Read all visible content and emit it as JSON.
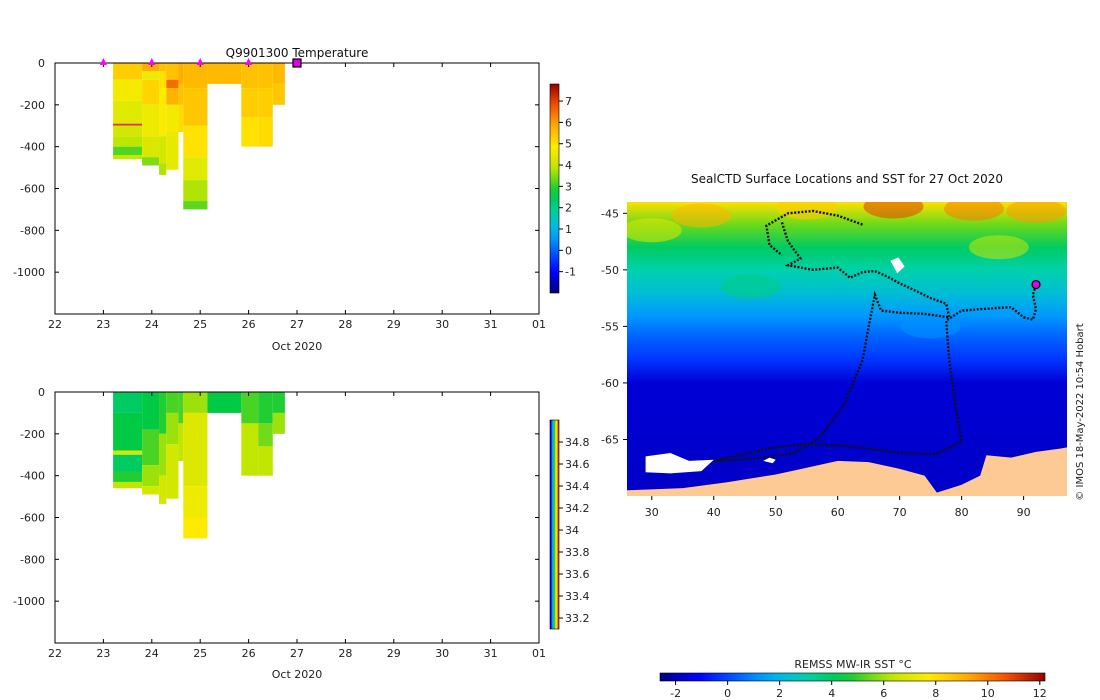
{
  "credit": "© IMOS 18-May-2022 10:54 Hobart",
  "colors": {
    "land": "#fdc994",
    "ice": "#ffffff",
    "track": "#111111",
    "marker": "#ff00ff",
    "current_marker": "#e000e0"
  },
  "chart_data": [
    {
      "id": "temperature",
      "type": "heatmap",
      "title": "Q9901300  Temperature",
      "xlabel": "Oct 2020",
      "ylabel": "",
      "xlim": [
        22,
        32
      ],
      "ylim": [
        -1200,
        0
      ],
      "xticks": [
        "22",
        "23",
        "24",
        "25",
        "26",
        "27",
        "28",
        "29",
        "30",
        "31",
        "01"
      ],
      "yticks": [
        0,
        -200,
        -400,
        -600,
        -800,
        -1000
      ],
      "ytick_labels": [
        "0",
        "-200",
        "-400",
        "-600",
        "-800",
        "-1000"
      ],
      "colorbar": {
        "min": -2,
        "max": 7.8,
        "ticks": [
          -1,
          0,
          1,
          2,
          3,
          4,
          5,
          6,
          7
        ],
        "tick_labels": [
          "-1",
          "0",
          "1",
          "2",
          "3",
          "4",
          "5",
          "6",
          "7"
        ]
      },
      "profile_markers_x": [
        23,
        24,
        25,
        26
      ],
      "current_x": 27,
      "columns": [
        {
          "x0": 23.2,
          "x1": 23.8,
          "max_depth": 460,
          "layers": [
            [
              0,
              80,
              5.3
            ],
            [
              80,
              180,
              4.7
            ],
            [
              180,
              290,
              4.4
            ],
            [
              290,
              300,
              7.0
            ],
            [
              300,
              350,
              4.2
            ],
            [
              350,
              400,
              3.9
            ],
            [
              400,
              440,
              3.2
            ],
            [
              440,
              460,
              4.0
            ]
          ]
        },
        {
          "x0": 23.8,
          "x1": 24.15,
          "max_depth": 490,
          "layers": [
            [
              0,
              40,
              5.8
            ],
            [
              40,
              80,
              4.6
            ],
            [
              80,
              200,
              5.2
            ],
            [
              200,
              350,
              4.6
            ],
            [
              350,
              450,
              4.3
            ],
            [
              450,
              490,
              3.5
            ]
          ]
        },
        {
          "x0": 24.15,
          "x1": 24.3,
          "max_depth": 535,
          "layers": [
            [
              0,
              40,
              5.5
            ],
            [
              40,
              120,
              5.0
            ],
            [
              120,
              350,
              4.8
            ],
            [
              350,
              480,
              4.2
            ],
            [
              480,
              535,
              3.8
            ]
          ]
        },
        {
          "x0": 24.3,
          "x1": 24.55,
          "max_depth": 510,
          "layers": [
            [
              0,
              80,
              5.5
            ],
            [
              80,
              120,
              6.5
            ],
            [
              120,
              200,
              5.7
            ],
            [
              200,
              330,
              4.7
            ],
            [
              330,
              510,
              4.5
            ]
          ]
        },
        {
          "x0": 24.55,
          "x1": 24.65,
          "max_depth": 330,
          "layers": [
            [
              0,
              100,
              5.8
            ],
            [
              100,
              200,
              5.5
            ],
            [
              200,
              330,
              5.1
            ]
          ]
        },
        {
          "x0": 24.65,
          "x1": 25.15,
          "max_depth": 700,
          "layers": [
            [
              0,
              120,
              5.6
            ],
            [
              120,
              300,
              5.4
            ],
            [
              300,
              450,
              5.0
            ],
            [
              450,
              560,
              4.4
            ],
            [
              560,
              660,
              3.8
            ],
            [
              660,
              700,
              3.3
            ]
          ]
        },
        {
          "x0": 25.15,
          "x1": 25.85,
          "max_depth": 100,
          "layers": [
            [
              0,
              100,
              5.6
            ]
          ]
        },
        {
          "x0": 25.85,
          "x1": 26.2,
          "max_depth": 400,
          "layers": [
            [
              0,
              120,
              5.5
            ],
            [
              120,
              260,
              5.3
            ],
            [
              260,
              400,
              5.0
            ]
          ]
        },
        {
          "x0": 26.2,
          "x1": 26.5,
          "max_depth": 400,
          "layers": [
            [
              0,
              120,
              5.5
            ],
            [
              120,
              260,
              5.3
            ],
            [
              260,
              400,
              5.1
            ]
          ]
        },
        {
          "x0": 26.5,
          "x1": 26.75,
          "max_depth": 200,
          "layers": [
            [
              0,
              100,
              5.6
            ],
            [
              100,
              200,
              5.4
            ]
          ]
        }
      ]
    },
    {
      "id": "salinity",
      "type": "heatmap",
      "title": "",
      "xlabel": "Oct 2020",
      "ylabel": "",
      "xlim": [
        22,
        32
      ],
      "ylim": [
        -1200,
        0
      ],
      "xticks": [
        "22",
        "23",
        "24",
        "25",
        "26",
        "27",
        "28",
        "29",
        "30",
        "31",
        "01"
      ],
      "yticks": [
        0,
        -200,
        -400,
        -600,
        -800,
        -1000
      ],
      "ytick_labels": [
        "0",
        "-200",
        "-400",
        "-600",
        "-800",
        "-1000"
      ],
      "colorbar": {
        "min": 33.1,
        "max": 35.0,
        "ticks": [
          33.2,
          33.4,
          33.6,
          33.8,
          34,
          34.2,
          34.4,
          34.6,
          34.8
        ],
        "tick_labels": [
          "33.2",
          "33.4",
          "33.6",
          "33.8",
          "34",
          "34.2",
          "34.4",
          "34.6",
          "34.8"
        ]
      },
      "columns": [
        {
          "x0": 23.2,
          "x1": 23.8,
          "max_depth": 460,
          "layers": [
            [
              0,
              100,
              33.95
            ],
            [
              100,
              280,
              34.0
            ],
            [
              280,
              300,
              34.3
            ],
            [
              300,
              380,
              33.95
            ],
            [
              380,
              430,
              34.05
            ],
            [
              430,
              460,
              34.25
            ]
          ]
        },
        {
          "x0": 23.8,
          "x1": 24.15,
          "max_depth": 490,
          "layers": [
            [
              0,
              180,
              34.0
            ],
            [
              180,
              350,
              34.1
            ],
            [
              350,
              450,
              34.2
            ],
            [
              450,
              490,
              34.3
            ]
          ]
        },
        {
          "x0": 24.15,
          "x1": 24.3,
          "max_depth": 535,
          "layers": [
            [
              0,
              200,
              34.05
            ],
            [
              200,
              400,
              34.2
            ],
            [
              400,
              535,
              34.3
            ]
          ]
        },
        {
          "x0": 24.3,
          "x1": 24.55,
          "max_depth": 510,
          "layers": [
            [
              0,
              100,
              34.1
            ],
            [
              100,
              250,
              34.2
            ],
            [
              250,
              510,
              34.3
            ]
          ]
        },
        {
          "x0": 24.55,
          "x1": 24.65,
          "max_depth": 330,
          "layers": [
            [
              0,
              150,
              34.1
            ],
            [
              150,
              330,
              34.25
            ]
          ]
        },
        {
          "x0": 24.65,
          "x1": 25.15,
          "max_depth": 700,
          "layers": [
            [
              0,
              100,
              34.2
            ],
            [
              100,
              450,
              34.33
            ],
            [
              450,
              600,
              34.38
            ],
            [
              600,
              700,
              34.42
            ]
          ]
        },
        {
          "x0": 25.15,
          "x1": 25.85,
          "max_depth": 100,
          "layers": [
            [
              0,
              100,
              34.0
            ]
          ]
        },
        {
          "x0": 25.85,
          "x1": 26.2,
          "max_depth": 400,
          "layers": [
            [
              0,
              150,
              34.1
            ],
            [
              150,
              400,
              34.25
            ]
          ]
        },
        {
          "x0": 26.2,
          "x1": 26.5,
          "max_depth": 400,
          "layers": [
            [
              0,
              150,
              34.05
            ],
            [
              150,
              260,
              34.15
            ],
            [
              260,
              400,
              34.25
            ]
          ]
        },
        {
          "x0": 26.5,
          "x1": 26.75,
          "max_depth": 200,
          "layers": [
            [
              0,
              100,
              34.05
            ],
            [
              100,
              200,
              34.2
            ]
          ]
        }
      ]
    },
    {
      "id": "sst-map",
      "type": "heatmap",
      "title": "SealCTD Surface Locations and SST for 27 Oct 2020",
      "xlabel": "",
      "ylabel": "",
      "xlim": [
        26,
        97
      ],
      "ylim": [
        -70,
        -44
      ],
      "xticks": [
        30,
        40,
        50,
        60,
        70,
        80,
        90
      ],
      "xtick_labels": [
        "30",
        "40",
        "50",
        "60",
        "70",
        "80",
        "90"
      ],
      "yticks": [
        -45,
        -50,
        -55,
        -60,
        -65
      ],
      "ytick_labels": [
        "-45",
        "-50",
        "-55",
        "-60",
        "-65"
      ],
      "current_position": [
        92,
        -51.3
      ],
      "sst_by_latitude": [
        [
          -44,
          8
        ],
        [
          -46,
          5.5
        ],
        [
          -48,
          4
        ],
        [
          -50,
          3
        ],
        [
          -52,
          2.3
        ],
        [
          -54,
          1.3
        ],
        [
          -56,
          0.4
        ],
        [
          -58,
          -0.3
        ],
        [
          -60,
          -1.6
        ],
        [
          -70,
          -1.8
        ]
      ],
      "coastline": [
        [
          26,
          -70
        ],
        [
          26,
          -69.5
        ],
        [
          35,
          -69.3
        ],
        [
          42,
          -68.8
        ],
        [
          50,
          -68.1
        ],
        [
          55,
          -67.5
        ],
        [
          60,
          -66.9
        ],
        [
          65,
          -67.0
        ],
        [
          70,
          -67.6
        ],
        [
          74,
          -68.2
        ],
        [
          76,
          -69.7
        ],
        [
          80,
          -69.0
        ],
        [
          83,
          -68.2
        ],
        [
          84,
          -66.4
        ],
        [
          88,
          -66.6
        ],
        [
          92,
          -66.1
        ],
        [
          96,
          -65.8
        ],
        [
          97,
          -65.7
        ],
        [
          97,
          -70
        ]
      ],
      "ice_patches": [
        [
          [
            29,
            -67.9
          ],
          [
            29,
            -66.5
          ],
          [
            33,
            -66.2
          ],
          [
            36,
            -66.9
          ],
          [
            40,
            -66.8
          ],
          [
            38,
            -67.8
          ],
          [
            33,
            -68.0
          ]
        ],
        [
          [
            48,
            -66.9
          ],
          [
            49,
            -66.6
          ],
          [
            50,
            -66.8
          ],
          [
            49.5,
            -67.1
          ]
        ],
        [
          [
            68.5,
            -49.2
          ],
          [
            69.8,
            -48.9
          ],
          [
            70.8,
            -49.7
          ],
          [
            69.6,
            -50.3
          ]
        ]
      ],
      "track": [
        [
          51,
          -45.8
        ],
        [
          52,
          -47.5
        ],
        [
          54,
          -49
        ],
        [
          52,
          -49.6
        ],
        [
          56,
          -50
        ],
        [
          60,
          -49.8
        ],
        [
          62,
          -50.7
        ],
        [
          64,
          -50.2
        ],
        [
          66,
          -50.1
        ],
        [
          68,
          -50.6
        ],
        [
          70,
          -51.2
        ],
        [
          72,
          -51.7
        ],
        [
          75,
          -52.5
        ],
        [
          77.5,
          -53.0
        ],
        [
          78,
          -54.2
        ],
        [
          74,
          -53.9
        ],
        [
          70,
          -53.8
        ],
        [
          67,
          -53.6
        ],
        [
          66,
          -52.2
        ],
        [
          65,
          -55
        ],
        [
          64,
          -58
        ],
        [
          61,
          -62
        ],
        [
          57,
          -64.9
        ],
        [
          53,
          -66.2
        ],
        [
          48,
          -66.6
        ],
        [
          44,
          -66.8
        ],
        [
          40,
          -66.9
        ],
        [
          44,
          -66.4
        ],
        [
          49,
          -65.8
        ],
        [
          55,
          -65.4
        ],
        [
          62,
          -65.6
        ],
        [
          70,
          -66.2
        ],
        [
          76,
          -66.3
        ],
        [
          80,
          -65.2
        ],
        [
          79,
          -62
        ],
        [
          78,
          -58
        ],
        [
          77.5,
          -54.5
        ],
        [
          80,
          -53.6
        ],
        [
          85,
          -53.4
        ],
        [
          88,
          -53.3
        ],
        [
          90,
          -54.2
        ],
        [
          91.5,
          -54.4
        ],
        [
          92,
          -53.5
        ],
        [
          91.5,
          -52.2
        ],
        [
          92,
          -51.3
        ]
      ],
      "track_branch": [
        [
          64,
          -46
        ],
        [
          60,
          -45.2
        ],
        [
          56,
          -44.8
        ],
        [
          52,
          -45.0
        ],
        [
          48.5,
          -46.1
        ],
        [
          49,
          -47.8
        ],
        [
          51,
          -48.7
        ]
      ],
      "colorbar": {
        "label": "REMSS MW-IR SST °C",
        "min": -2.6,
        "max": 12.2,
        "ticks": [
          -2,
          0,
          2,
          4,
          6,
          8,
          10,
          12
        ],
        "tick_labels": [
          "-2",
          "0",
          "2",
          "4",
          "6",
          "8",
          "10",
          "12"
        ]
      }
    }
  ]
}
